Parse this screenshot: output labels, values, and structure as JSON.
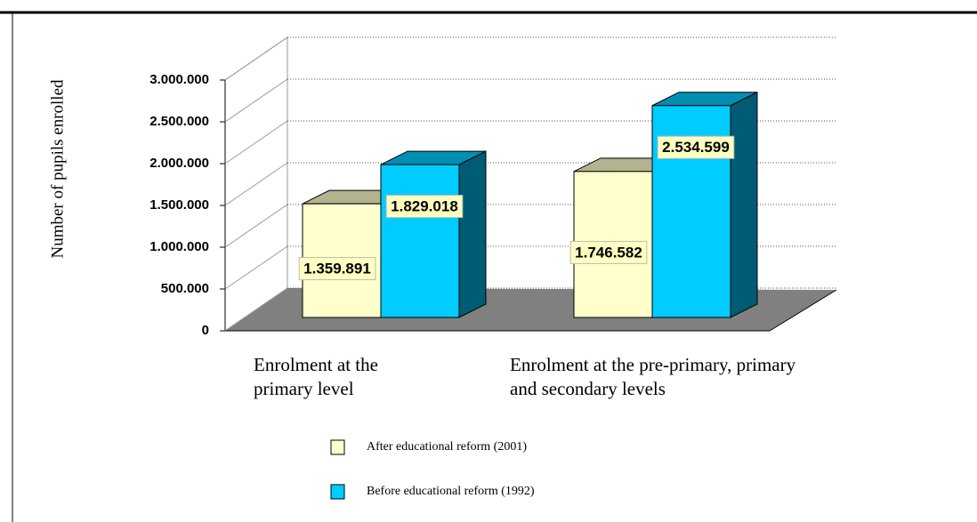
{
  "chart_data": {
    "type": "bar3d",
    "y_axis_label": "Number of pupils enrolled",
    "categories": [
      "Enrolment at the primary level",
      "Enrolment at the pre-primary, primary and secondary levels"
    ],
    "series": [
      {
        "name": "After educational reform (2001)",
        "color": "#ffffcc",
        "values": [
          1359891,
          1746582
        ],
        "value_labels": [
          "1.359.891",
          "1.746.582"
        ]
      },
      {
        "name": "Before educational reform (1992)",
        "color": "#00ccff",
        "values": [
          1829018,
          2534599
        ],
        "value_labels": [
          "1.829.018",
          "2.534.599"
        ]
      }
    ],
    "ylim": [
      0,
      3000000
    ],
    "yticks": [
      0,
      {
        "value": 500000,
        "label": "500.000"
      },
      {
        "value": 1000000,
        "label": "1.000.000"
      },
      {
        "value": 1500000,
        "label": "1.500.000"
      },
      {
        "value": 2000000,
        "label": "2.000.000"
      },
      {
        "value": 2500000,
        "label": "2.500.000"
      },
      {
        "value": 3000000,
        "label": "3.000.000"
      }
    ],
    "grid": true
  }
}
